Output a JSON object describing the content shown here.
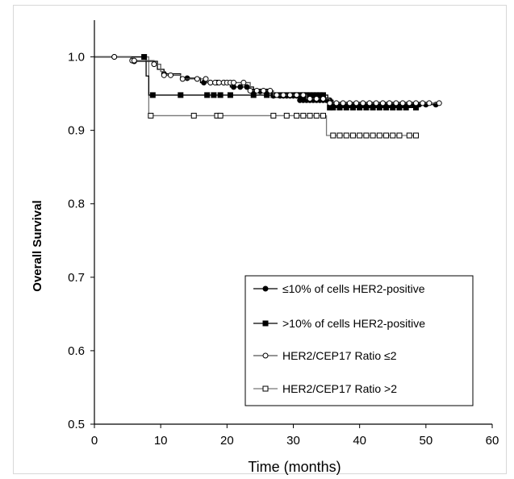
{
  "chart_data": {
    "type": "line",
    "subtype": "kaplan-meier",
    "title": "",
    "xlabel": "Time (months)",
    "ylabel": "Overall Survival",
    "xlim": [
      0,
      60
    ],
    "ylim": [
      0.5,
      1.05
    ],
    "x_ticks": [
      0,
      10,
      20,
      30,
      40,
      50,
      60
    ],
    "y_ticks": [
      0.5,
      0.6,
      0.7,
      0.8,
      0.9,
      1.0
    ],
    "x_tick_labels": [
      "0",
      "10",
      "20",
      "30",
      "40",
      "50",
      "60"
    ],
    "y_tick_labels": [
      "0.5",
      "0.6",
      "0.7",
      "0.8",
      "0.9",
      "1.0"
    ],
    "grid": false,
    "legend_position": "bottom-right",
    "series": [
      {
        "name": "≤10% of cells HER2-positive",
        "marker": "filled-circle",
        "steps": [
          [
            0,
            1.0
          ],
          [
            5.5,
            0.994
          ],
          [
            9.5,
            0.983
          ],
          [
            10.5,
            0.977
          ],
          [
            13,
            0.971
          ],
          [
            16,
            0.965
          ],
          [
            20.5,
            0.959
          ],
          [
            24,
            0.953
          ],
          [
            27,
            0.947
          ],
          [
            31,
            0.941
          ],
          [
            36,
            0.935
          ],
          [
            51.5,
            0.935
          ]
        ],
        "censored": [
          3,
          6,
          10.5,
          14,
          16.5,
          17.5,
          18.5,
          19.5,
          21,
          22,
          23,
          24,
          25,
          26,
          27,
          28,
          28.5,
          29,
          29.5,
          30,
          30.5,
          31,
          31.5,
          32,
          32.5,
          33,
          33.5,
          34,
          34.5,
          35,
          35.5,
          36,
          36.5,
          37,
          37.5,
          38,
          38.5,
          39,
          39.5,
          40,
          40.5,
          41,
          41.5,
          42,
          42.5,
          43,
          43.5,
          44,
          44.5,
          45,
          45.5,
          46,
          46.5,
          47,
          47.5,
          48,
          49,
          50,
          51.5
        ]
      },
      {
        "name": ">10% of cells HER2-positive",
        "marker": "filled-square",
        "steps": [
          [
            0,
            1.0
          ],
          [
            7.5,
            1.0
          ],
          [
            7.8,
            0.974
          ],
          [
            8.2,
            0.948
          ],
          [
            35,
            0.948
          ],
          [
            35.2,
            0.931
          ],
          [
            48.5,
            0.931
          ]
        ],
        "censored": [
          7.5,
          8.8,
          13,
          17,
          18,
          19,
          20.5,
          24,
          26,
          27,
          28,
          29,
          30,
          30.5,
          31,
          31.5,
          32,
          32.5,
          33,
          33.5,
          34,
          34.5,
          35.5,
          36,
          37,
          38,
          39,
          40,
          41,
          42,
          43,
          44,
          45,
          46,
          47,
          48.5
        ]
      },
      {
        "name": "HER2/CEP17 Ratio ≤2",
        "marker": "open-circle",
        "steps": [
          [
            0,
            1.0
          ],
          [
            5.5,
            0.995
          ],
          [
            9,
            0.99
          ],
          [
            10,
            0.98
          ],
          [
            10.5,
            0.975
          ],
          [
            13,
            0.97
          ],
          [
            17,
            0.965
          ],
          [
            23.5,
            0.954
          ],
          [
            27,
            0.948
          ],
          [
            32,
            0.943
          ],
          [
            35.5,
            0.937
          ],
          [
            52,
            0.937
          ]
        ],
        "censored": [
          3,
          5.7,
          6,
          9,
          10.5,
          11.5,
          13.3,
          15.5,
          16.8,
          17.5,
          18.2,
          18.8,
          19.5,
          20,
          20.5,
          21,
          22.5,
          23.5,
          24.5,
          25.5,
          26.5,
          27.5,
          28.5,
          29.5,
          30.5,
          31.5,
          32.5,
          33.5,
          34.5,
          35.5,
          36.5,
          37.5,
          38.5,
          39.5,
          40.5,
          41.5,
          42.5,
          43.5,
          44.5,
          45.5,
          46.5,
          47.5,
          48.5,
          49.5,
          50.5,
          52
        ]
      },
      {
        "name": "HER2/CEP17 Ratio >2",
        "marker": "open-square",
        "steps": [
          [
            0,
            1.0
          ],
          [
            8,
            1.0
          ],
          [
            8.2,
            0.92
          ],
          [
            34.8,
            0.92
          ],
          [
            35,
            0.893
          ],
          [
            48.5,
            0.893
          ]
        ],
        "censored": [
          8.5,
          15,
          18.5,
          19,
          27,
          29,
          30.5,
          31.5,
          32.5,
          33.5,
          34.5,
          36,
          37,
          38,
          39,
          40,
          41,
          42,
          43,
          44,
          45,
          46,
          47.5,
          48.5
        ]
      }
    ]
  }
}
